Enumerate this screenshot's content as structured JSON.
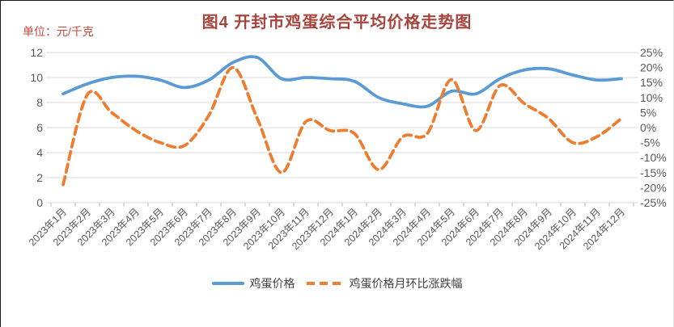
{
  "header": {
    "title": "图4 开封市鸡蛋综合平均价格走势图",
    "unit_label": "单位：元/千克"
  },
  "colors": {
    "price_line": "#5B9BD5",
    "pct_line": "#ED7D31",
    "gridline": "#D9D9D9",
    "tick_mark": "#BFBFBF",
    "axis_text": "#595959",
    "title_text": "#A6453C",
    "unit_text": "#C44A40",
    "legend_text": "#404040"
  },
  "chart_data": {
    "type": "line",
    "title": "图4 开封市鸡蛋综合平均价格走势图",
    "unit": "元/千克",
    "grid": true,
    "legend_position": "bottom",
    "categories": [
      "2023年1月",
      "2023年2月",
      "2023年3月",
      "2023年4月",
      "2023年5月",
      "2023年6月",
      "2023年7月",
      "2023年8月",
      "2023年9月",
      "2023年10月",
      "2023年11月",
      "2023年12月",
      "2024年1月",
      "2024年2月",
      "2024年3月",
      "2024年4月",
      "2024年5月",
      "2024年6月",
      "2024年7月",
      "2024年8月",
      "2024年9月",
      "2024年10月",
      "2024年11月",
      "2024年12月"
    ],
    "left_axis": {
      "min": 0,
      "max": 12,
      "step": 2,
      "tick_labels": [
        "0",
        "2",
        "4",
        "6",
        "8",
        "10",
        "12"
      ]
    },
    "right_axis": {
      "min": -25,
      "max": 25,
      "step": 5,
      "tick_labels": [
        "-25%",
        "-20%",
        "-15%",
        "-10%",
        "-5%",
        "0%",
        "5%",
        "10%",
        "15%",
        "20%",
        "25%"
      ]
    },
    "series": [
      {
        "name": "鸡蛋价格",
        "axis": "left",
        "style": "solid",
        "color": "#5B9BD5",
        "values": [
          8.7,
          9.5,
          10.0,
          10.1,
          9.8,
          9.2,
          9.8,
          11.2,
          11.6,
          9.9,
          10.0,
          9.9,
          9.7,
          8.4,
          7.9,
          7.7,
          8.9,
          8.7,
          9.9,
          10.6,
          10.7,
          10.2,
          9.8,
          9.9
        ]
      },
      {
        "name": "鸡蛋价格月环比涨跌幅",
        "axis": "right",
        "style": "dashed",
        "color": "#ED7D31",
        "values": [
          -19,
          11,
          5,
          -1,
          -5,
          -6,
          4,
          20,
          3,
          -15,
          2,
          -1,
          -2,
          -14,
          -3,
          -2,
          16,
          -1,
          14,
          8,
          3,
          -5,
          -3,
          3
        ]
      }
    ]
  },
  "legend": {
    "items": [
      {
        "label": "鸡蛋价格"
      },
      {
        "label": "鸡蛋价格月环比涨跌幅"
      }
    ]
  }
}
